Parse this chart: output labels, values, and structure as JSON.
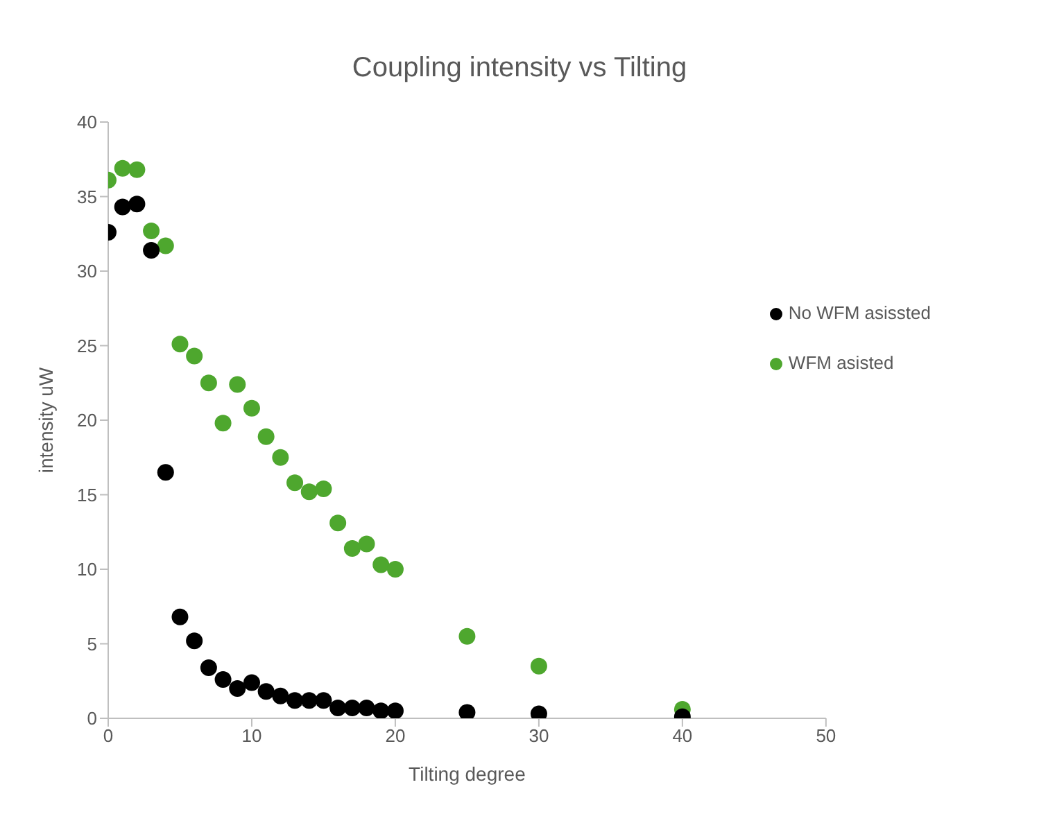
{
  "chart_data": {
    "type": "scatter",
    "title": "Coupling intensity vs Tilting",
    "xlabel": "Tilting degree",
    "ylabel": "intensity uW",
    "x": [
      0,
      1,
      2,
      3,
      4,
      5,
      6,
      7,
      8,
      9,
      10,
      11,
      12,
      13,
      14,
      15,
      16,
      17,
      18,
      19,
      20,
      25,
      30,
      40
    ],
    "series": [
      {
        "name": "WFM asisted",
        "color": "#4ea72e",
        "values": [
          36.1,
          36.9,
          36.8,
          32.7,
          31.7,
          25.1,
          24.3,
          22.5,
          19.8,
          22.4,
          20.8,
          18.9,
          17.5,
          15.8,
          15.2,
          15.4,
          13.1,
          11.4,
          11.7,
          10.3,
          10.0,
          5.5,
          3.5,
          0.6
        ]
      },
      {
        "name": "No WFM asissted",
        "color": "#000000",
        "values": [
          32.6,
          34.3,
          34.5,
          31.4,
          16.5,
          6.8,
          5.2,
          3.4,
          2.6,
          2.0,
          2.4,
          1.8,
          1.5,
          1.2,
          1.2,
          1.2,
          0.7,
          0.7,
          0.7,
          0.5,
          0.5,
          0.4,
          0.3,
          0.1
        ]
      }
    ],
    "xlim": [
      0,
      50
    ],
    "xticks": [
      0,
      10,
      20,
      30,
      40,
      50
    ],
    "ylim": [
      0,
      40
    ],
    "yticks": [
      0,
      5,
      10,
      15,
      20,
      25,
      30,
      35,
      40
    ],
    "grid": false,
    "legend": "right",
    "marker": "circle"
  }
}
